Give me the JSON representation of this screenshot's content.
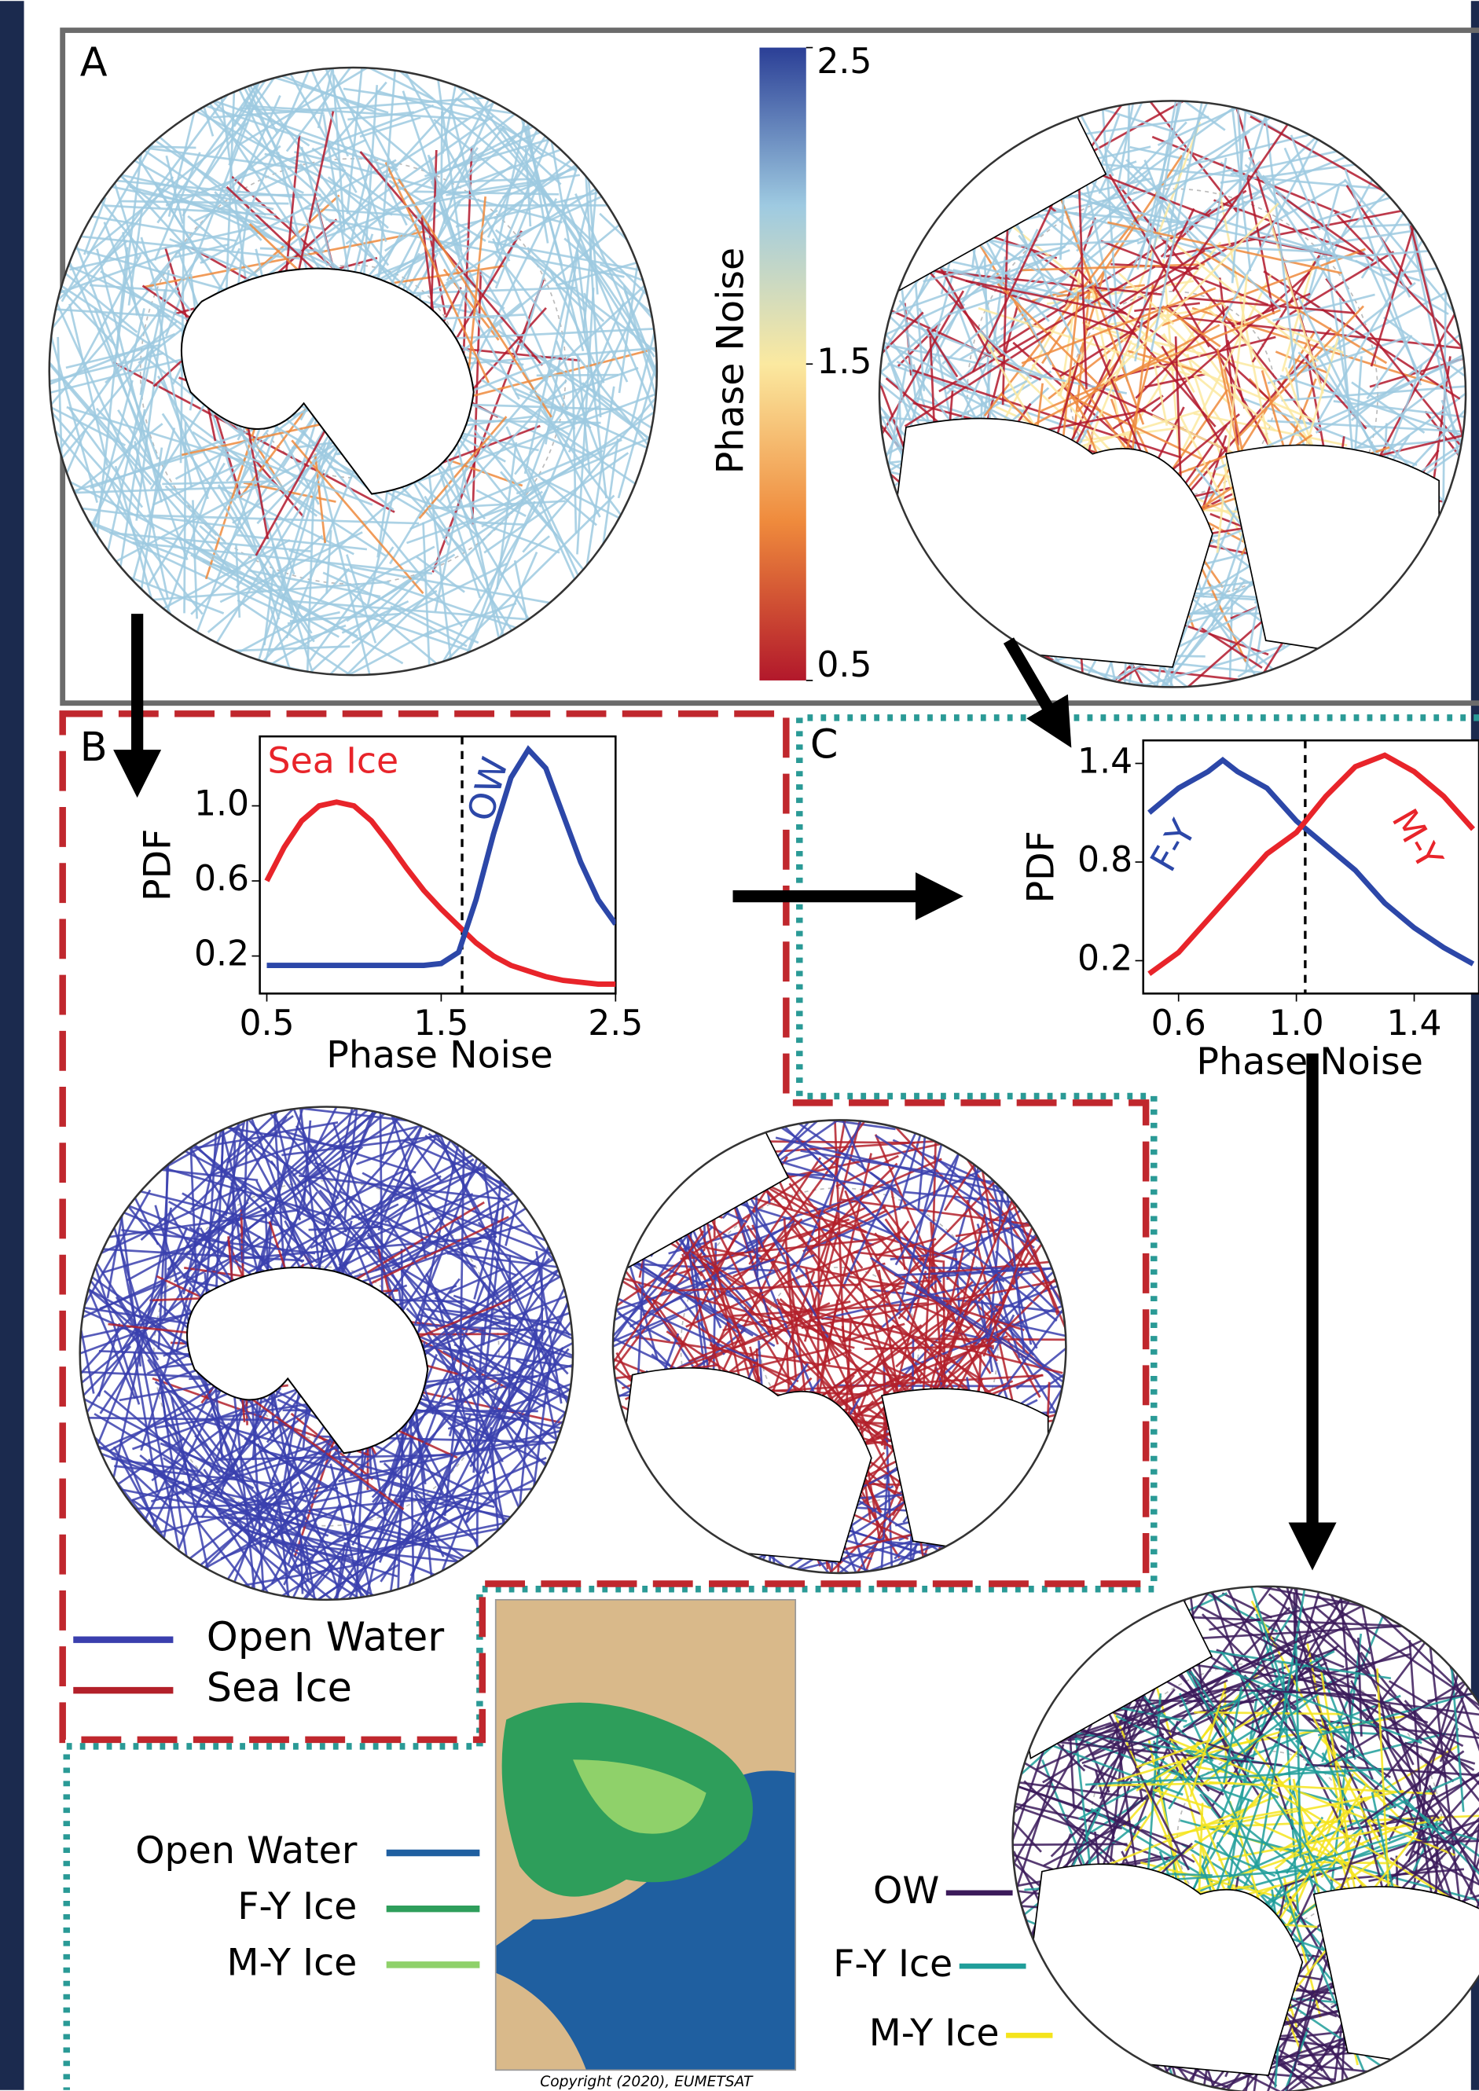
{
  "panels": {
    "a": "A",
    "b": "B",
    "c": "C"
  },
  "colorbar": {
    "label": "Phase Noise",
    "lim": [
      0.5,
      2.5
    ],
    "ticks": [
      2.5,
      1.5,
      0.5
    ],
    "colors": [
      "#b2182b",
      "#ef8a3c",
      "#fbe9a0",
      "#9ecae1",
      "#2b3f96"
    ]
  },
  "chart_data": [
    {
      "type": "line",
      "xlabel": "Phase Noise",
      "ylabel": "PDF",
      "x": [
        0.5,
        0.6,
        0.7,
        0.8,
        0.9,
        1.0,
        1.1,
        1.2,
        1.3,
        1.4,
        1.5,
        1.6,
        1.7,
        1.8,
        1.9,
        2.0,
        2.1,
        2.2,
        2.3,
        2.4,
        2.5
      ],
      "series": [
        {
          "name": "Sea Ice",
          "color": "#e8242a",
          "values": [
            0.6,
            0.78,
            0.92,
            1.0,
            1.02,
            1.0,
            0.92,
            0.8,
            0.67,
            0.55,
            0.45,
            0.36,
            0.27,
            0.2,
            0.15,
            0.12,
            0.09,
            0.07,
            0.06,
            0.05,
            0.05
          ]
        },
        {
          "name": "OW",
          "color": "#2c47a8",
          "values": [
            0.15,
            0.15,
            0.15,
            0.15,
            0.15,
            0.15,
            0.15,
            0.15,
            0.15,
            0.15,
            0.16,
            0.22,
            0.5,
            0.85,
            1.15,
            1.3,
            1.2,
            0.95,
            0.7,
            0.5,
            0.37
          ]
        }
      ],
      "xlim": [
        0.46,
        2.5
      ],
      "ylim": [
        0,
        1.37
      ],
      "xticks": [
        0.5,
        1.5,
        2.5
      ],
      "yticks": [
        0.2,
        0.6,
        {
          "value": 1,
          "label": "1.0"
        }
      ],
      "threshold": 1.62
    },
    {
      "type": "line",
      "xlabel": "Phase Noise",
      "ylabel": "PDF",
      "x": [
        0.5,
        0.6,
        0.7,
        0.75,
        0.8,
        0.9,
        1.0,
        1.1,
        1.2,
        1.3,
        1.4,
        1.5,
        1.6
      ],
      "series": [
        {
          "name": "F-Y",
          "color": "#2c47a8",
          "values": [
            1.1,
            1.25,
            1.35,
            1.42,
            1.35,
            1.25,
            1.05,
            0.9,
            0.75,
            0.55,
            0.4,
            0.28,
            0.18
          ]
        },
        {
          "name": "M-Y",
          "color": "#e8242a",
          "values": [
            0.12,
            0.25,
            0.45,
            0.55,
            0.65,
            0.85,
            0.98,
            1.2,
            1.38,
            1.45,
            1.35,
            1.2,
            1.0
          ]
        }
      ],
      "xlim": [
        0.48,
        1.62
      ],
      "ylim": [
        0,
        1.54
      ],
      "xticks": [
        0.6,
        {
          "value": 1,
          "label": "1.0"
        },
        1.4
      ],
      "yticks": [
        0.2,
        0.8,
        1.4
      ],
      "threshold": 1.03
    }
  ],
  "legend_b": [
    {
      "label": "Open Water",
      "color": "#3a3fae"
    },
    {
      "label": "Sea Ice",
      "color": "#b3202a"
    }
  ],
  "legend_ice_chart": [
    {
      "label": "Open Water",
      "color": "#1f5fa0"
    },
    {
      "label": "F-Y Ice",
      "color": "#2e9e5b"
    },
    {
      "label": "M-Y Ice",
      "color": "#8fd16a"
    }
  ],
  "legend_classified": [
    {
      "label": "OW",
      "color": "#3b1a5a"
    },
    {
      "label": "F-Y Ice",
      "color": "#1f9e9a"
    },
    {
      "label": "M-Y Ice",
      "color": "#f4e41c"
    }
  ],
  "copyright": "Copyright (2020), EUMETSAT"
}
